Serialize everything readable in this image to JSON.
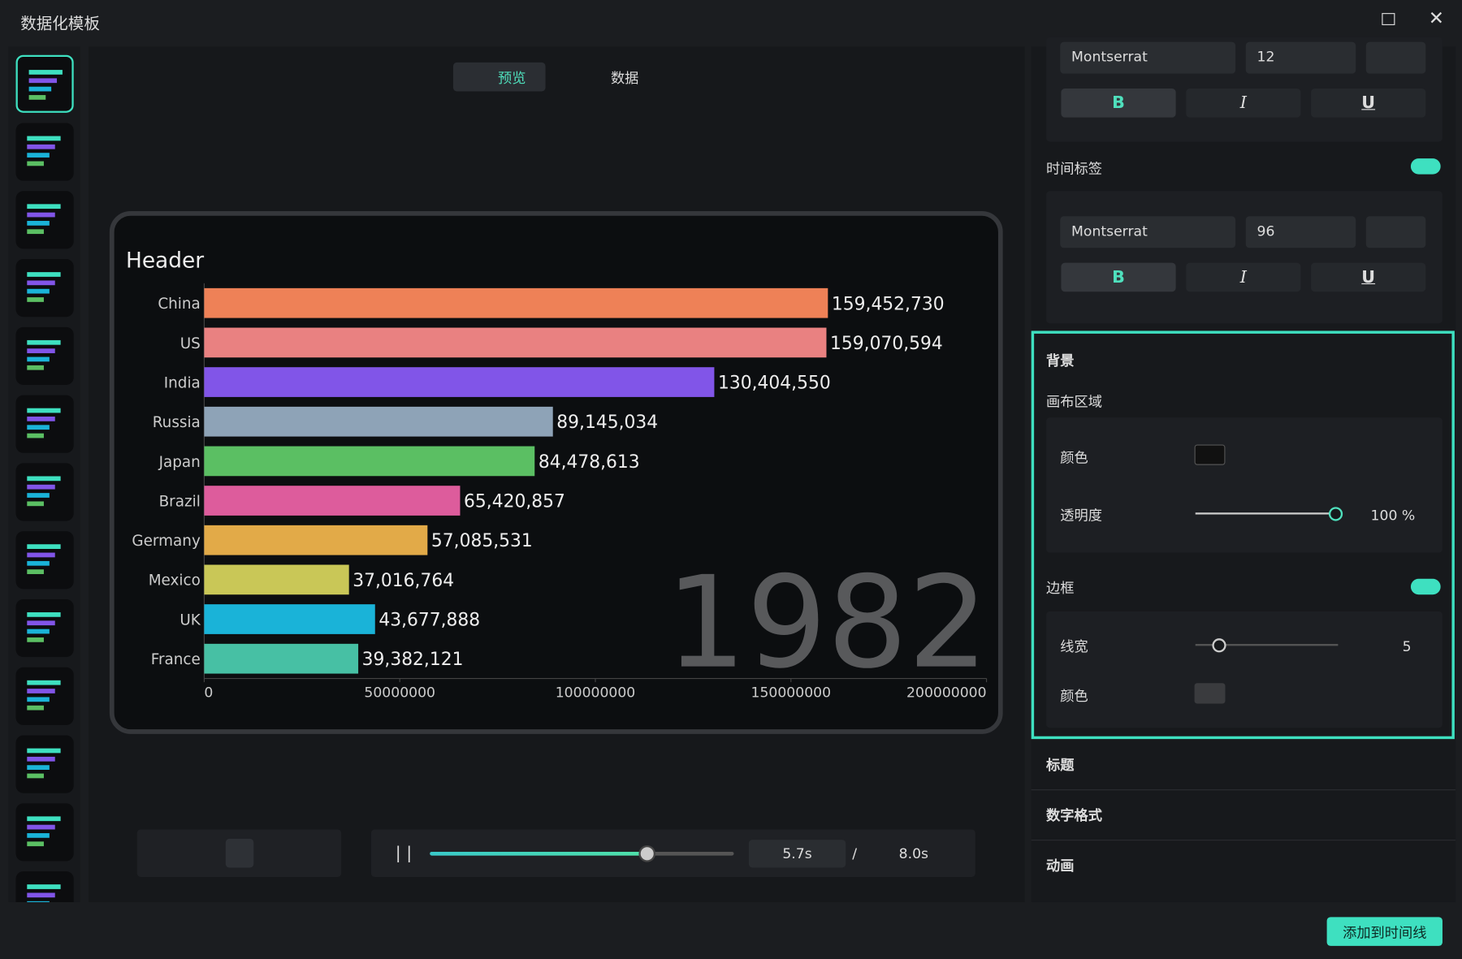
{
  "window": {
    "title": "数据化模板"
  },
  "tabs": [
    "预览",
    "数据"
  ],
  "chart_data": {
    "type": "bar",
    "orientation": "horizontal",
    "title": "Header",
    "categories": [
      "China",
      "US",
      "India",
      "Russia",
      "Japan",
      "Brazil",
      "Germany",
      "Mexico",
      "UK",
      "France"
    ],
    "values": [
      159452730,
      159070594,
      130404550,
      89145034,
      84478613,
      65420857,
      57085531,
      37016764,
      43677888,
      39382121
    ],
    "value_labels": [
      "159,452,730",
      "159,070,594",
      "130,404,550",
      "89,145,034",
      "84,478,613",
      "65,420,857",
      "57,085,531",
      "37,016,764",
      "43,677,888",
      "39,382,121"
    ],
    "colors": [
      "#ee8157",
      "#e98181",
      "#8155e8",
      "#8ea3b7",
      "#5bbf63",
      "#dd5c9c",
      "#e2aa48",
      "#c9c757",
      "#1ab3d8",
      "#47c0a4"
    ],
    "xlim": [
      0,
      200000000
    ],
    "xticks": [
      0,
      50000000,
      100000000,
      150000000,
      200000000
    ],
    "annotation": "1982"
  },
  "panel": {
    "font1": {
      "family": "Montserrat",
      "size": "12"
    },
    "font2": {
      "family": "Montserrat",
      "size": "96"
    },
    "styles": [
      "B",
      "I",
      "U"
    ],
    "time_label": "时间标签",
    "background": "背景",
    "canvas_area": "画布区域",
    "color": "颜色",
    "opacity": "透明度",
    "opacity_value": "100 %",
    "border": "边框",
    "line_width": "线宽",
    "line_width_value": "5",
    "border_color": "颜色",
    "collapsed": [
      "标题",
      "数字格式",
      "动画"
    ]
  },
  "playback": {
    "current": "5.7s",
    "separator": "/",
    "total": "8.0s"
  },
  "button": "添加到时间线"
}
